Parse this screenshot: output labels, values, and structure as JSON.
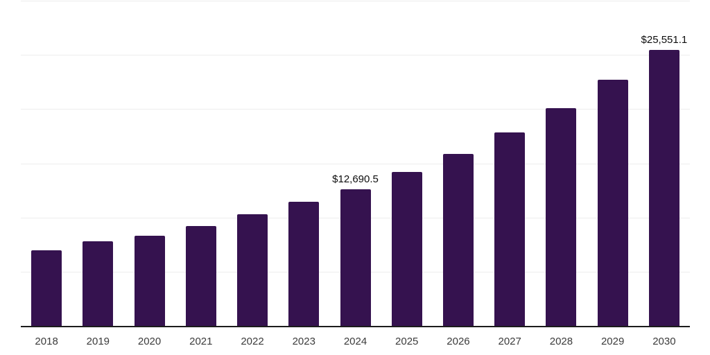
{
  "chart": {
    "colors": {
      "background": "#ffffff",
      "bar": "#35124f",
      "grid": "#ededed",
      "axis": "#1c1c1c",
      "data_label": "#0d0d0d",
      "tick_label": "#3b3b3b"
    }
  },
  "chart_data": {
    "type": "bar",
    "title": "",
    "xlabel": "",
    "ylabel": "",
    "categories": [
      "2018",
      "2019",
      "2020",
      "2021",
      "2022",
      "2023",
      "2024",
      "2025",
      "2026",
      "2027",
      "2028",
      "2029",
      "2030"
    ],
    "values": [
      7035,
      7870,
      8380,
      9275,
      10365,
      11515,
      12690.5,
      14265,
      15930,
      17910,
      20150,
      22775,
      25551.1
    ],
    "point_labels": [
      "",
      "",
      "",
      "",
      "",
      "",
      "$12,690.5",
      "",
      "",
      "",
      "",
      "",
      "$25,551.1"
    ],
    "ylim": [
      0,
      30000
    ],
    "gridline_interval": 5000,
    "grid": true,
    "y_axis_labels_visible": false,
    "legend": false,
    "currency": "$"
  }
}
